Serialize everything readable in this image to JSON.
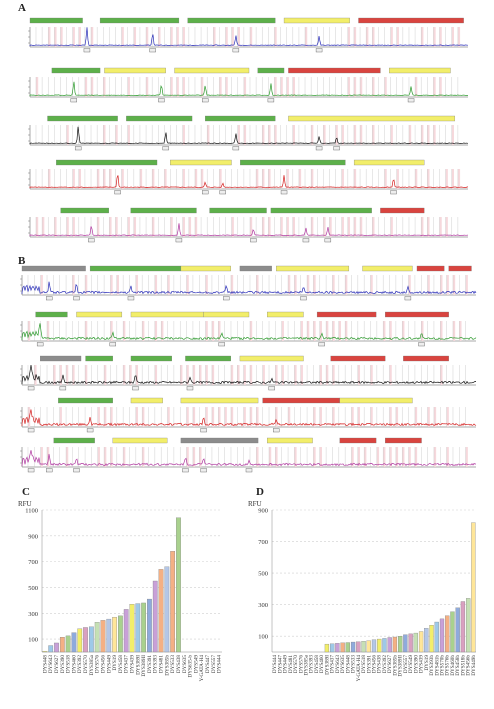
{
  "panels": {
    "A": "A",
    "B": "B",
    "C": "C",
    "D": "D"
  },
  "colors": {
    "green": "#5db04a",
    "yellow": "#f2ee6a",
    "red": "#d9443f",
    "grey": "#8c8c8c",
    "blue_trace": "#2b2fb8",
    "green_trace": "#2e9a2e",
    "black_trace": "#111111",
    "red_trace": "#d42020",
    "purple_trace": "#b03aa0"
  },
  "chart_data": [
    {
      "panel": "C",
      "type": "bar",
      "ylabel": "RFU",
      "ylim": [
        0,
        1100
      ],
      "yticks": [
        100,
        300,
        500,
        700,
        900,
        1100
      ],
      "grid": true,
      "categories": [
        "DYS448",
        "DYS643",
        "DYS627",
        "DYS390",
        "DYS518",
        "DYS460",
        "DYS392",
        "DYS570",
        "DYS385a",
        "DYS576",
        "DYS456",
        "DYS449",
        "DYS19",
        "DYS458",
        "DYS437",
        "DYS439",
        "DYS389I",
        "DYS389II",
        "DYS391",
        "DYS393",
        "DYS481",
        "DYS385b",
        "DYS533",
        "DYS438",
        "DYS635",
        "DYS635-b",
        "DYS549",
        "Y-GATA-H4",
        "DYS447",
        "DYS557",
        "DYS444"
      ],
      "values": [
        5,
        50,
        70,
        115,
        125,
        150,
        180,
        190,
        195,
        230,
        245,
        255,
        270,
        280,
        330,
        370,
        375,
        380,
        410,
        550,
        640,
        660,
        780,
        1040,
        0,
        0,
        0,
        0,
        0,
        0,
        0
      ],
      "bar_colors": [
        "#f2ee6a",
        "#9ec9e8",
        "#c8a0d8",
        "#f4b084",
        "#a9d18e",
        "#8faadc",
        "#f2ee6a",
        "#d9a0c0",
        "#9ec9e8",
        "#c5e0b4",
        "#f4b084",
        "#b4c7e7",
        "#ffe699",
        "#a9d18e",
        "#c8a0d8",
        "#f2ee6a",
        "#9ec9e8",
        "#a9d18e",
        "#8faadc",
        "#c8a0d8",
        "#f4b084",
        "#b4c7e7",
        "#f4b084",
        "#a9d18e"
      ]
    },
    {
      "panel": "D",
      "type": "bar",
      "ylabel": "RFU",
      "ylim": [
        0,
        900
      ],
      "yticks": [
        100,
        300,
        500,
        700,
        900
      ],
      "grid": true,
      "categories": [
        "DYS444",
        "DYS447",
        "DYS449",
        "DYS481",
        "DYS570",
        "DYS576",
        "DYS385a",
        "DYS393",
        "DYS458",
        "DYS460",
        "DYS389I",
        "DYS437",
        "DYS643",
        "DYS635",
        "DYS448",
        "DYS533",
        "Y-GATA-H4",
        "DYS518",
        "DYS391",
        "DYS456",
        "DYS438",
        "DYS392",
        "DYS627",
        "DYS385b",
        "DYS389II",
        "DYS557",
        "DYS549",
        "DYS390",
        "DYS439",
        "DYS19",
        "DYS393b",
        "DYS481b",
        "DYS570b",
        "DYS576b",
        "DYS460b",
        "DYS458b",
        "DYS518b",
        "DYS456b",
        "DYS449b"
      ],
      "values": [
        0,
        0,
        0,
        0,
        0,
        0,
        0,
        0,
        0,
        0,
        50,
        52,
        55,
        58,
        60,
        63,
        65,
        68,
        72,
        78,
        82,
        86,
        92,
        95,
        100,
        110,
        115,
        120,
        130,
        150,
        170,
        190,
        210,
        230,
        255,
        280,
        320,
        340,
        820
      ]
    }
  ]
}
